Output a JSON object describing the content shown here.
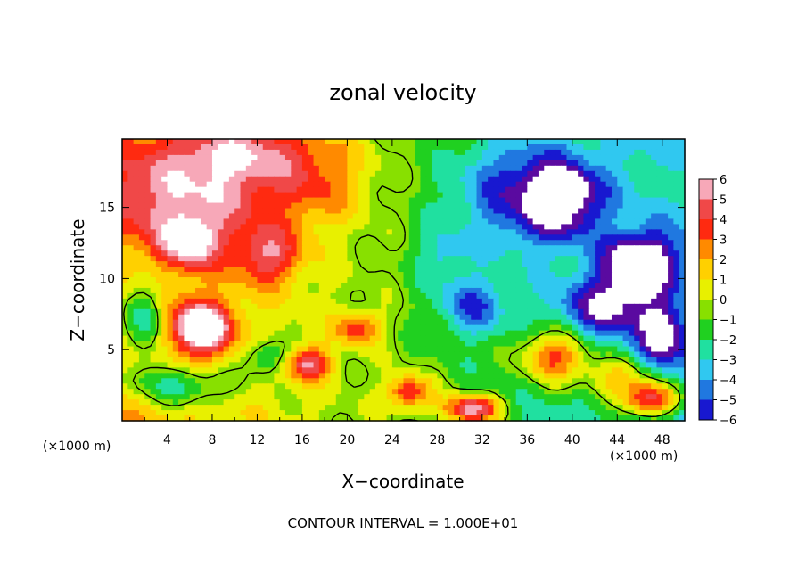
{
  "chart_data": {
    "type": "heatmap",
    "title": "zonal velocity",
    "xlabel": "X−coordinate",
    "ylabel": "Z−coordinate",
    "x_unit_left": "(×1000 m)",
    "x_unit_right": "(×1000 m)",
    "xlim": [
      0,
      50
    ],
    "ylim": [
      0,
      19.8
    ],
    "x_ticks": [
      4,
      8,
      12,
      16,
      20,
      24,
      28,
      32,
      36,
      40,
      44,
      48
    ],
    "y_ticks": [
      5,
      10,
      15
    ],
    "colorbar": {
      "levels": [
        6,
        5,
        4,
        3,
        2,
        1,
        0,
        -1,
        -2,
        -3,
        -4,
        -5,
        -6
      ],
      "level_labels": [
        "6",
        "5",
        "4",
        "3",
        "2",
        "1",
        "0",
        "−1",
        "−2",
        "−3",
        "−4",
        "−5",
        "−6"
      ],
      "colors": [
        "#f7a8b8",
        "#f04848",
        "#ff2a10",
        "#ff8a00",
        "#ffd000",
        "#e8f000",
        "#88e000",
        "#20d020",
        "#20e0a0",
        "#30c8f0",
        "#2078e0",
        "#1818d0",
        "#5a0aa0"
      ]
    },
    "blobs": [
      {
        "x": 7,
        "z": 16,
        "v": 4.4,
        "sx": 9,
        "sz": 3.5
      },
      {
        "x": 11,
        "z": 19,
        "v": 3.5,
        "sx": 6,
        "sz": 2
      },
      {
        "x": 6,
        "z": 12.5,
        "v": 5.2,
        "sx": 2.5,
        "sz": 1.8
      },
      {
        "x": 13,
        "z": 11.5,
        "v": 4.0,
        "sx": 3,
        "sz": 2
      },
      {
        "x": 18,
        "z": 17,
        "v": 2.0,
        "sx": 4,
        "sz": 3
      },
      {
        "x": 7,
        "z": 6.5,
        "v": 7.5,
        "sx": 2.8,
        "sz": 1.8
      },
      {
        "x": 2,
        "z": 7,
        "v": -4.5,
        "sx": 2,
        "sz": 3
      },
      {
        "x": 5,
        "z": 2.5,
        "v": -3.5,
        "sx": 5,
        "sz": 1.5
      },
      {
        "x": 16.5,
        "z": 4,
        "v": 5.0,
        "sx": 2,
        "sz": 1.2
      },
      {
        "x": 21,
        "z": 6.5,
        "v": 4.0,
        "sx": 2,
        "sz": 1.2
      },
      {
        "x": 13,
        "z": 4.5,
        "v": -3.0,
        "sx": 2,
        "sz": 1.2
      },
      {
        "x": 25.5,
        "z": 2,
        "v": 5.0,
        "sx": 2,
        "sz": 1.2
      },
      {
        "x": 31,
        "z": 0.8,
        "v": 7.0,
        "sx": 2.5,
        "sz": 1.0
      },
      {
        "x": 35,
        "z": 16,
        "v": -3.5,
        "sx": 6,
        "sz": 4
      },
      {
        "x": 39,
        "z": 15.5,
        "v": -5.0,
        "sx": 3.5,
        "sz": 2.5
      },
      {
        "x": 39,
        "z": 16.5,
        "v": -7.5,
        "sx": 1.5,
        "sz": 0.8
      },
      {
        "x": 46,
        "z": 11,
        "v": -7.5,
        "sx": 3,
        "sz": 2
      },
      {
        "x": 43,
        "z": 8,
        "v": -4.5,
        "sx": 4,
        "sz": 2
      },
      {
        "x": 31,
        "z": 8,
        "v": -3.5,
        "sx": 3,
        "sz": 2
      },
      {
        "x": 38.5,
        "z": 4.5,
        "v": 5.5,
        "sx": 3,
        "sz": 1.8
      },
      {
        "x": 44,
        "z": 3,
        "v": 4.0,
        "sx": 3,
        "sz": 1.5
      },
      {
        "x": 47,
        "z": 1.5,
        "v": 7.5,
        "sx": 2.5,
        "sz": 1.2
      },
      {
        "x": 48,
        "z": 6,
        "v": -5.0,
        "sx": 2,
        "sz": 2
      },
      {
        "x": 28.5,
        "z": 11.5,
        "v": -2.0,
        "sx": 2.5,
        "sz": 2
      },
      {
        "x": 49,
        "z": 17,
        "v": 1.0,
        "sx": 2,
        "sz": 2
      }
    ],
    "base_gradient": {
      "left": 2.5,
      "right": -3.0
    }
  },
  "footer": {
    "contour_interval": "CONTOUR INTERVAL = 1.000E+01"
  },
  "colors": {
    "axis": "#000000",
    "contour": "#000000",
    "background": "#ffffff"
  }
}
